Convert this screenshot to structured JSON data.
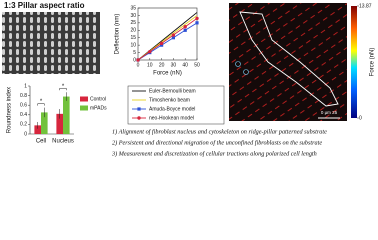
{
  "sem_label": "1:3 Pillar aspect ratio",
  "chart_data": [
    {
      "type": "bar",
      "y_label": "Roundness index",
      "categories": [
        "Cell",
        "Nucleus"
      ],
      "series": [
        {
          "name": "Control",
          "color": "#d7263d",
          "values": [
            0.18,
            0.42
          ],
          "errors": [
            0.07,
            0.1
          ]
        },
        {
          "name": "mPADs",
          "color": "#72c23c",
          "values": [
            0.45,
            0.78
          ],
          "errors": [
            0.1,
            0.09
          ]
        }
      ],
      "ylim": [
        0,
        1
      ],
      "yticks": [
        0,
        0.2,
        0.4,
        0.6,
        0.8,
        1
      ],
      "annotations": [
        "*",
        "*"
      ]
    },
    {
      "type": "line",
      "x_label": "Force (nN)",
      "y_label": "Deflection (nm)",
      "x": [
        0,
        10,
        20,
        30,
        40,
        50
      ],
      "series": [
        {
          "name": "Euler-Bernoulli beam",
          "color": "#111111",
          "marker": null,
          "values": [
            0,
            6.4,
            12.8,
            19.2,
            25.6,
            32
          ]
        },
        {
          "name": "Timoshenko beam",
          "color": "#e8d21d",
          "marker": null,
          "values": [
            0,
            6,
            12,
            18,
            24,
            30
          ]
        },
        {
          "name": "Amuda-Boyce model",
          "color": "#2c4fd6",
          "marker": "square",
          "values": [
            0,
            5,
            10,
            15,
            20,
            25
          ]
        },
        {
          "name": "neo-Hookean model",
          "color": "#d7263d",
          "marker": "circle",
          "values": [
            0,
            5.6,
            11.2,
            16.8,
            22.4,
            28
          ]
        }
      ],
      "xlim": [
        0,
        50
      ],
      "xticks": [
        0,
        10,
        20,
        30,
        40,
        50
      ],
      "ylim": [
        0,
        35
      ],
      "yticks": [
        0,
        5,
        10,
        15,
        20,
        25,
        30,
        35
      ]
    }
  ],
  "force_map": {
    "colorbar_label": "Force (nN)",
    "colorbar_lim": [
      0,
      13.87
    ],
    "colorbar_ticks": [
      0,
      13.87
    ],
    "scale_bar": "0 μm 25"
  },
  "captions": [
    "1) Alignment of fibroblast nucleus and cytoskeleton on ridge-pillar patterned substrate",
    "2) Persistent and directional migration of the unconfined fibroblasts on the substrate",
    "3) Measurement and discretization of cellular tractions along polarized cell length"
  ]
}
